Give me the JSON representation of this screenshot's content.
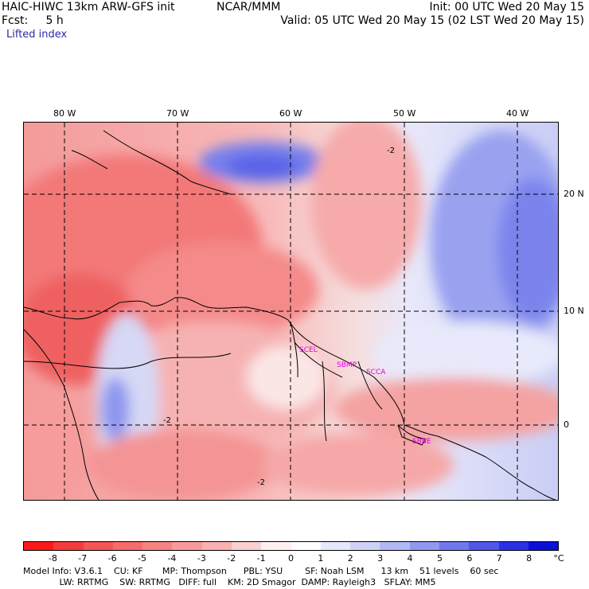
{
  "header": {
    "title": "HAIC-HIWC 13km ARW-GFS init",
    "center": "NCAR/MMM",
    "fcst": "Fcst:     5 h",
    "field": "Lifted index",
    "init": "Init: 00 UTC Wed 20 May 15",
    "valid": "Valid: 05 UTC Wed 20 May 15 (02 LST Wed 20 May 15)"
  },
  "axes": {
    "lon_labels": [
      "80 W",
      "70 W",
      "60 W",
      "50 W",
      "40 W"
    ],
    "lat_labels": [
      "20 N",
      "10 N",
      "0"
    ]
  },
  "stations": [
    "SCEL",
    "SBMP",
    "SCCA",
    "SBBE"
  ],
  "contour_labels": [
    "-2"
  ],
  "colorbar": {
    "labels": [
      "-8",
      "-7",
      "-6",
      "-5",
      "-4",
      "-3",
      "-2",
      "-1",
      "0",
      "1",
      "2",
      "3",
      "4",
      "5",
      "6",
      "7",
      "8"
    ],
    "unit": "°C",
    "colors": [
      "#ff1a1a",
      "#f33b3b",
      "#f55555",
      "#f66b6b",
      "#f78282",
      "#f89a9a",
      "#f8b2b2",
      "#fad0d0",
      "#fff0f0",
      "#ffffff",
      "#e6e8fb",
      "#cfd2f7",
      "#b2b8f3",
      "#9098ef",
      "#7078ec",
      "#4f57e9",
      "#2a30e6",
      "#0b10d9"
    ]
  },
  "footer": {
    "line1": "Model Info: V3.6.1    CU: KF       MP: Thompson      PBL: YSU        SF: Noah LSM      13 km    51 levels    60 sec",
    "line2": "             LW: RRTMG    SW: RRTMG   DIFF: full    KM: 2D Smagor  DAMP: Rayleigh3   SFLAY: MM5"
  },
  "colors": {
    "header_blue": "#2a2aa8",
    "station_magenta": "#e000e0"
  }
}
